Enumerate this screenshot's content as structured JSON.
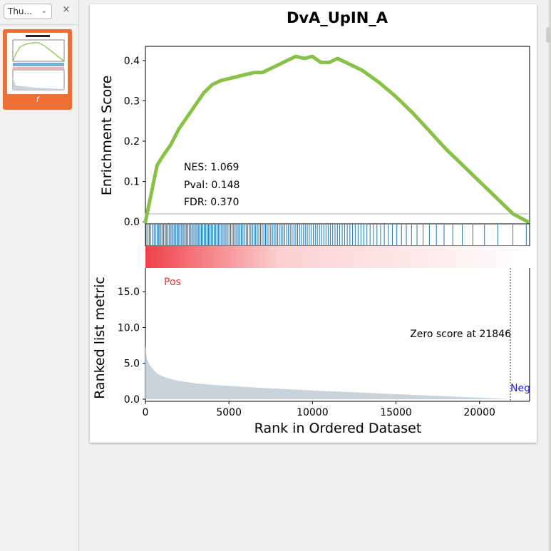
{
  "sidebar": {
    "view_select": "Thu...",
    "close_glyph": "×",
    "thumbnail_label": "f"
  },
  "page": {
    "title": "DvA_UpIN_A"
  },
  "chart_data": {
    "type": "line",
    "title": "DvA_UpIN_A",
    "top_panel": {
      "ylabel": "Enrichment Score",
      "ylim": [
        -0.005,
        0.435
      ],
      "yticks": [
        "0.0",
        "0.1",
        "0.2",
        "0.3",
        "0.4"
      ],
      "ytick_values": [
        0.0,
        0.1,
        0.2,
        0.3,
        0.4
      ],
      "series": [
        {
          "name": "running enrichment score",
          "color": "#88c048",
          "x": [
            0,
            300,
            700,
            1000,
            1500,
            2000,
            2500,
            3000,
            3500,
            4000,
            4500,
            5000,
            5500,
            6000,
            6500,
            7000,
            7500,
            8000,
            8500,
            9000,
            9500,
            10000,
            10500,
            11000,
            11500,
            12000,
            12500,
            13000,
            14000,
            15000,
            16000,
            17000,
            18000,
            19000,
            20000,
            21000,
            22000,
            22900
          ],
          "y": [
            0.0,
            0.06,
            0.14,
            0.16,
            0.19,
            0.23,
            0.26,
            0.29,
            0.32,
            0.34,
            0.35,
            0.355,
            0.36,
            0.365,
            0.37,
            0.37,
            0.38,
            0.39,
            0.4,
            0.41,
            0.405,
            0.41,
            0.395,
            0.395,
            0.405,
            0.395,
            0.385,
            0.375,
            0.345,
            0.31,
            0.27,
            0.225,
            0.18,
            0.14,
            0.1,
            0.06,
            0.02,
            0.0
          ]
        }
      ],
      "annotations": [
        "NES: 1.069",
        "Pval: 0.148",
        "FDR: 0.370"
      ]
    },
    "hits_panel": {
      "type": "barcode",
      "color": "#1f77b4",
      "hit_positions": [
        40,
        150,
        230,
        310,
        420,
        520,
        600,
        700,
        780,
        850,
        930,
        1010,
        1090,
        1180,
        1250,
        1330,
        1420,
        1500,
        1580,
        1660,
        1740,
        1820,
        1900,
        1970,
        2050,
        2140,
        2220,
        2300,
        2380,
        2460,
        2540,
        2620,
        2700,
        2780,
        2860,
        2950,
        3030,
        3110,
        3190,
        3270,
        3350,
        3430,
        3520,
        3600,
        3690,
        3780,
        3860,
        3940,
        4030,
        4120,
        4210,
        4300,
        4380,
        4470,
        4560,
        4650,
        4740,
        4820,
        4910,
        5000,
        5100,
        5190,
        5280,
        5370,
        5460,
        5550,
        5650,
        5740,
        5840,
        5930,
        6030,
        6120,
        6220,
        6310,
        6410,
        6500,
        6600,
        6700,
        6790,
        6890,
        6990,
        7090,
        7190,
        7290,
        7390,
        7500,
        7600,
        7700,
        7810,
        7910,
        8020,
        8120,
        8230,
        8340,
        8450,
        8560,
        8670,
        8780,
        8890,
        9000,
        9110,
        9230,
        9340,
        9460,
        9570,
        9690,
        9810,
        9930,
        10050,
        10170,
        10290,
        10420,
        10550,
        10680,
        10810,
        10940,
        11070,
        11210,
        11350,
        11490,
        11630,
        11780,
        11930,
        12080,
        12240,
        12400,
        12560,
        12730,
        12900,
        13080,
        13260,
        13450,
        13650,
        13860,
        14080,
        14300,
        14540,
        14790,
        15050,
        15330,
        15620,
        15930,
        16260,
        16620,
        17000,
        17420,
        17880,
        18400,
        18970,
        19600,
        20300,
        21100,
        22000,
        22800
      ]
    },
    "rank_heatmap": {
      "type": "heatmap",
      "description_colors": [
        "#f0404a",
        "#ffffff"
      ]
    },
    "bottom_panel": {
      "type": "area",
      "ylabel": "Ranked list metric",
      "xlabel": "Rank in Ordered Dataset",
      "xlim": [
        0,
        23000
      ],
      "ylim": [
        -0.3,
        18.3
      ],
      "xticks": [
        "0",
        "5000",
        "10000",
        "15000",
        "20000"
      ],
      "xtick_values": [
        0,
        5000,
        10000,
        15000,
        20000
      ],
      "yticks": [
        "0.0",
        "5.0",
        "10.0",
        "15.0"
      ],
      "ytick_values": [
        0,
        5,
        10,
        15
      ],
      "fill_color": "#c8d3dc",
      "x": [
        0,
        40,
        100,
        200,
        400,
        700,
        1000,
        1500,
        2000,
        3000,
        4000,
        5000,
        6000,
        8000,
        10000,
        12000,
        14000,
        16000,
        18000,
        20000,
        21000,
        21846,
        23000
      ],
      "y": [
        7.5,
        6.6,
        5.6,
        5.0,
        4.3,
        3.6,
        3.2,
        2.8,
        2.55,
        2.2,
        2.0,
        1.85,
        1.7,
        1.45,
        1.2,
        1.0,
        0.8,
        0.6,
        0.4,
        0.2,
        0.1,
        0.0,
        0.0
      ],
      "zero_line": 21846,
      "labels": {
        "pos": "Pos",
        "neg": "Neg",
        "zero_score": "Zero score at 21846",
        "pos_color": "#e8302f",
        "neg_color": "#1f1fd0"
      }
    }
  }
}
